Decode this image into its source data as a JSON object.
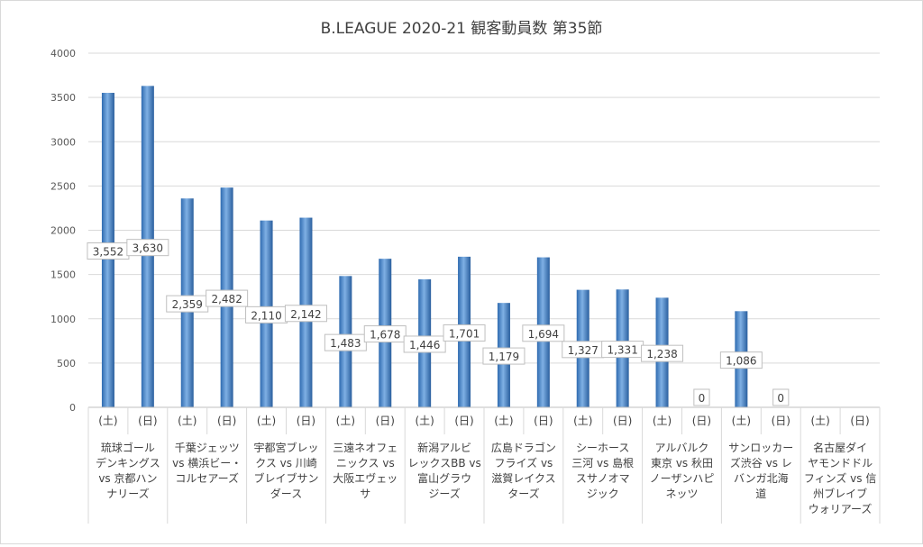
{
  "chart_data": {
    "type": "bar",
    "title": "B.LEAGUE 2020-21 観客動員数 第35節",
    "xlabel": "",
    "ylabel": "",
    "ylim": [
      0,
      4000
    ],
    "yticks": [
      "0",
      "500",
      "1000",
      "1500",
      "2000",
      "2500",
      "3000",
      "3500",
      "4000"
    ],
    "grid": true,
    "legend": "none",
    "bar_color": "#4a86c8",
    "groups": [
      {
        "name": [
          "琉球ゴール",
          "デンキングス",
          "vs 京都ハン",
          "ナリーズ"
        ],
        "days": [
          "(土)",
          "(日)"
        ],
        "values": [
          3552,
          3630
        ],
        "labels": [
          "3,552",
          "3,630"
        ]
      },
      {
        "name": [
          "千葉ジェッツ",
          "vs 横浜ビー・",
          "コルセアーズ"
        ],
        "days": [
          "(土)",
          "(日)"
        ],
        "values": [
          2359,
          2482
        ],
        "labels": [
          "2,359",
          "2,482"
        ]
      },
      {
        "name": [
          "宇都宮ブレッ",
          "クス vs 川崎",
          "ブレイブサン",
          "ダース"
        ],
        "days": [
          "(土)",
          "(日)"
        ],
        "values": [
          2110,
          2142
        ],
        "labels": [
          "2,110",
          "2,142"
        ]
      },
      {
        "name": [
          "三遠ネオフェ",
          "ニックス vs",
          "大阪エヴェッ",
          "サ"
        ],
        "days": [
          "(土)",
          "(日)"
        ],
        "values": [
          1483,
          1678
        ],
        "labels": [
          "1,483",
          "1,678"
        ]
      },
      {
        "name": [
          "新潟アルビ",
          "レックスBB vs",
          "富山グラウ",
          "ジーズ"
        ],
        "days": [
          "(土)",
          "(日)"
        ],
        "values": [
          1446,
          1701
        ],
        "labels": [
          "1,446",
          "1,701"
        ]
      },
      {
        "name": [
          "広島ドラゴン",
          "フライズ vs",
          "滋賀レイクス",
          "ターズ"
        ],
        "days": [
          "(土)",
          "(日)"
        ],
        "values": [
          1179,
          1694
        ],
        "labels": [
          "1,179",
          "1,694"
        ]
      },
      {
        "name": [
          "シーホース",
          "三河 vs 島根",
          "スサノオマ",
          "ジック"
        ],
        "days": [
          "(土)",
          "(日)"
        ],
        "values": [
          1327,
          1331
        ],
        "labels": [
          "1,327",
          "1,331"
        ]
      },
      {
        "name": [
          "アルバルク",
          "東京 vs 秋田",
          "ノーザンハピ",
          "ネッツ"
        ],
        "days": [
          "(土)",
          "(日)"
        ],
        "values": [
          1238,
          0
        ],
        "labels": [
          "1,238",
          "0"
        ]
      },
      {
        "name": [
          "サンロッカー",
          "ズ渋谷 vs レ",
          "バンガ北海",
          "道"
        ],
        "days": [
          "(土)",
          "(日)"
        ],
        "values": [
          1086,
          0
        ],
        "labels": [
          "1,086",
          "0"
        ]
      },
      {
        "name": [
          "名古屋ダイ",
          "ヤモンドドル",
          "フィンズ vs 信",
          "州ブレイブ",
          "ウォリアーズ"
        ],
        "days": [
          "(土)",
          "(日)"
        ],
        "values": [
          null,
          null
        ],
        "labels": [
          "",
          ""
        ]
      }
    ]
  }
}
